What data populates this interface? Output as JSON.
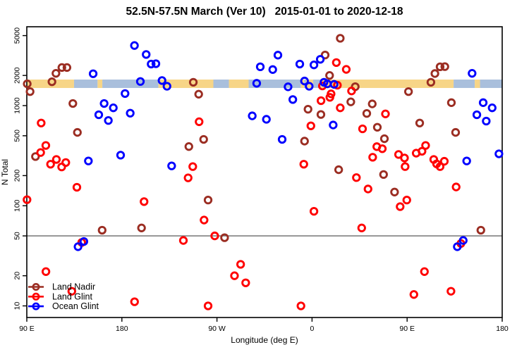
{
  "title": "52.5N-57.5N March (Ver 10)   2015-01-01 to 2020-12-18",
  "axes": {
    "y_label": "N Total",
    "x_label": "Longitude (deg E)",
    "y_ticks": [
      10,
      20,
      50,
      100,
      200,
      500,
      1000,
      2000,
      5000
    ],
    "x_ticks": [
      {
        "lon": 90,
        "label": "90 E"
      },
      {
        "lon": 180,
        "label": "180"
      },
      {
        "lon": 270,
        "label": "90 W"
      },
      {
        "lon": 360,
        "label": "0"
      },
      {
        "lon": 450,
        "label": "90 E"
      },
      {
        "lon": 540,
        "label": "180"
      }
    ]
  },
  "legend": {
    "items": [
      {
        "label": "Land Nadir",
        "color": "#9b2d22"
      },
      {
        "label": "Land Glint",
        "color": "#ff0000"
      },
      {
        "label": "Ocean Glint",
        "color": "#0000ff"
      }
    ]
  },
  "chart_data": {
    "type": "scatter",
    "x_axis": {
      "min": 90,
      "max": 540,
      "note": "longitude deg E, wrapping 90E->180->90W->0->90E->180"
    },
    "y_axis": {
      "scale": "log",
      "min": 10,
      "max": 5000
    },
    "grid": "off",
    "reference_line": {
      "y": 50,
      "color": "#808080"
    },
    "map_band": {
      "n_top": 1820,
      "n_bottom": 1500,
      "land_color": "#f7d587",
      "ocean_color": "#a9bfdc",
      "segments": [
        {
          "from": 90,
          "to": 134.7,
          "type": "land"
        },
        {
          "from": 134.7,
          "to": 157,
          "type": "ocean"
        },
        {
          "from": 157,
          "to": 161.5,
          "type": "land"
        },
        {
          "from": 161.5,
          "to": 214.6,
          "type": "ocean"
        },
        {
          "from": 214.6,
          "to": 266.6,
          "type": "land"
        },
        {
          "from": 266.6,
          "to": 281.3,
          "type": "ocean"
        },
        {
          "from": 281.3,
          "to": 300,
          "type": "land"
        },
        {
          "from": 300,
          "to": 349.5,
          "type": "ocean"
        },
        {
          "from": 349.5,
          "to": 352.5,
          "type": "land"
        },
        {
          "from": 352.5,
          "to": 354.5,
          "type": "ocean"
        },
        {
          "from": 354.5,
          "to": 361,
          "type": "land"
        },
        {
          "from": 361,
          "to": 368.5,
          "type": "ocean"
        },
        {
          "from": 368.5,
          "to": 494,
          "type": "land"
        },
        {
          "from": 494,
          "to": 514,
          "type": "ocean"
        },
        {
          "from": 514,
          "to": 519,
          "type": "land"
        },
        {
          "from": 519,
          "to": 540,
          "type": "ocean"
        }
      ]
    },
    "series": [
      {
        "name": "Land Nadir",
        "color": "#9b2d22",
        "points": [
          [
            90.4,
            1650
          ],
          [
            93.1,
            1380
          ],
          [
            98.2,
            310
          ],
          [
            113.8,
            1730
          ],
          [
            117.6,
            2100
          ],
          [
            123.2,
            2400
          ],
          [
            128,
            2400
          ],
          [
            133.6,
            1050
          ],
          [
            137.9,
            540
          ],
          [
            161.3,
            57
          ],
          [
            198.6,
            60
          ],
          [
            243.4,
            390
          ],
          [
            247.6,
            1710
          ],
          [
            252.7,
            1300
          ],
          [
            257.4,
            460
          ],
          [
            261.6,
            114
          ],
          [
            277.2,
            48
          ],
          [
            352.9,
            442
          ],
          [
            356.2,
            920
          ],
          [
            368.4,
            815
          ],
          [
            372.4,
            3200
          ],
          [
            376.6,
            2000
          ],
          [
            385.2,
            229
          ],
          [
            386.7,
            4700
          ],
          [
            396.7,
            1090
          ],
          [
            400.9,
            1545
          ],
          [
            411.8,
            835
          ],
          [
            417,
            1040
          ],
          [
            421.8,
            608
          ],
          [
            427.7,
            205
          ],
          [
            428.5,
            467
          ],
          [
            438.1,
            137
          ],
          [
            451.3,
            1380
          ],
          [
            461.9,
            670
          ],
          [
            472.5,
            1710
          ],
          [
            476.3,
            2090
          ],
          [
            481.2,
            2440
          ],
          [
            485.7,
            2450
          ],
          [
            491.9,
            1070
          ],
          [
            495.9,
            540
          ],
          [
            519.8,
            57
          ]
        ]
      },
      {
        "name": "Land Glint",
        "color": "#ff0000",
        "points": [
          [
            90.2,
            115
          ],
          [
            103.1,
            340
          ],
          [
            103.6,
            670
          ],
          [
            108,
            400
          ],
          [
            108.1,
            22
          ],
          [
            112.5,
            260
          ],
          [
            118,
            290
          ],
          [
            123,
            244
          ],
          [
            126.9,
            270
          ],
          [
            132.6,
            14
          ],
          [
            137.4,
            153
          ],
          [
            142,
            43
          ],
          [
            192,
            11
          ],
          [
            201,
            110
          ],
          [
            238.2,
            45
          ],
          [
            242.7,
            190
          ],
          [
            247.1,
            246
          ],
          [
            253.1,
            690
          ],
          [
            257.8,
            72
          ],
          [
            261.6,
            10
          ],
          [
            267.9,
            50
          ],
          [
            286.6,
            20
          ],
          [
            292.4,
            26
          ],
          [
            297.2,
            17
          ],
          [
            349.5,
            10
          ],
          [
            352.2,
            260
          ],
          [
            358.9,
            628
          ],
          [
            361.8,
            88
          ],
          [
            368.5,
            1120
          ],
          [
            369.8,
            1570
          ],
          [
            376.9,
            1210
          ],
          [
            378,
            1310
          ],
          [
            383,
            2690
          ],
          [
            384,
            1600
          ],
          [
            386.7,
            950
          ],
          [
            392.4,
            2300
          ],
          [
            397.4,
            1400
          ],
          [
            402,
            191
          ],
          [
            407,
            60
          ],
          [
            407.8,
            586
          ],
          [
            413,
            147
          ],
          [
            417.4,
            305
          ],
          [
            421.3,
            389
          ],
          [
            426.5,
            371
          ],
          [
            429.5,
            826
          ],
          [
            441.9,
            325
          ],
          [
            443.4,
            98
          ],
          [
            447.5,
            300
          ],
          [
            448.1,
            246
          ],
          [
            449.7,
            114
          ],
          [
            456.4,
            13
          ],
          [
            458.6,
            335
          ],
          [
            464.1,
            350
          ],
          [
            466.4,
            22
          ],
          [
            467.5,
            400
          ],
          [
            475.2,
            290
          ],
          [
            477.9,
            262
          ],
          [
            481.2,
            246
          ],
          [
            485.2,
            278
          ],
          [
            491.5,
            14
          ],
          [
            496.4,
            154
          ],
          [
            500.9,
            42
          ]
        ]
      },
      {
        "name": "Ocean Glint",
        "color": "#0000ff",
        "points": [
          [
            138.5,
            39
          ],
          [
            144,
            44
          ],
          [
            148.3,
            280
          ],
          [
            152.8,
            2080
          ],
          [
            158.1,
            810
          ],
          [
            163.2,
            1050
          ],
          [
            167.2,
            710
          ],
          [
            171.9,
            950
          ],
          [
            178.8,
            320
          ],
          [
            183,
            1320
          ],
          [
            187.9,
            840
          ],
          [
            191.9,
            3980
          ],
          [
            197.5,
            1740
          ],
          [
            203,
            3240
          ],
          [
            207.7,
            2600
          ],
          [
            212.2,
            2620
          ],
          [
            218,
            1780
          ],
          [
            222.7,
            1560
          ],
          [
            227.1,
            250
          ],
          [
            303.4,
            790
          ],
          [
            307.6,
            1670
          ],
          [
            311,
            2440
          ],
          [
            316.8,
            730
          ],
          [
            322.8,
            2290
          ],
          [
            327.7,
            3190
          ],
          [
            331.7,
            460
          ],
          [
            337.3,
            1540
          ],
          [
            341.8,
            1150
          ],
          [
            348.4,
            2600
          ],
          [
            352.9,
            1760
          ],
          [
            357.3,
            1560
          ],
          [
            361.8,
            2550
          ],
          [
            367.8,
            2900
          ],
          [
            371.3,
            1710
          ],
          [
            374.5,
            1650
          ],
          [
            380,
            640
          ],
          [
            380.9,
            1630
          ],
          [
            497.5,
            39
          ],
          [
            503.1,
            45
          ],
          [
            506.4,
            280
          ],
          [
            511.5,
            2100
          ],
          [
            516,
            810
          ],
          [
            522,
            1070
          ],
          [
            524.9,
            700
          ],
          [
            530.5,
            950
          ],
          [
            536.9,
            330
          ]
        ]
      }
    ]
  }
}
